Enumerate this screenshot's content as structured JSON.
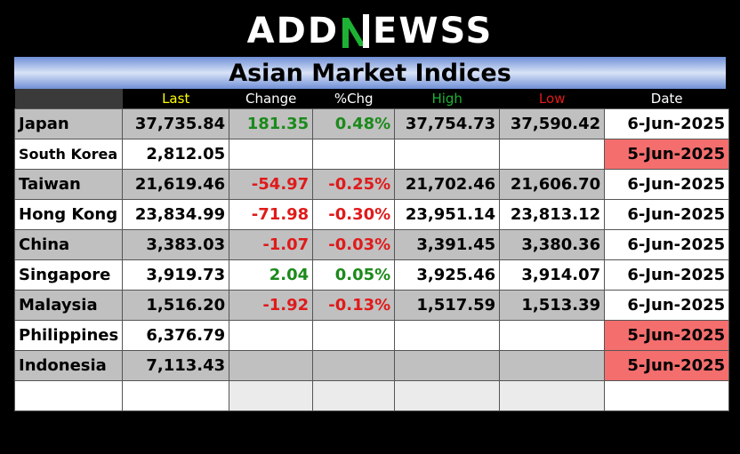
{
  "brand": {
    "pre": "ADD",
    "post": "EWSS",
    "colors": {
      "white": "#ffffff",
      "green": "#1db233"
    }
  },
  "title": "Asian Market Indices",
  "columns": [
    {
      "key": "last",
      "label": "Last",
      "color": "#ffff00"
    },
    {
      "key": "change",
      "label": "Change",
      "color": "#ffffff"
    },
    {
      "key": "pct",
      "label": "%Chg",
      "color": "#ffffff"
    },
    {
      "key": "high",
      "label": "High",
      "color": "#1db233"
    },
    {
      "key": "low",
      "label": "Low",
      "color": "#e01a1a"
    },
    {
      "key": "date",
      "label": "Date",
      "color": "#ffffff"
    }
  ],
  "rows": [
    {
      "name": "Japan",
      "last": "37,735.84",
      "change": "181.35",
      "pct": "0.48%",
      "high": "37,754.73",
      "low": "37,590.42",
      "date": "6-Jun-2025",
      "dir": "pos",
      "stale": false
    },
    {
      "name": "South Korea",
      "last": "2,812.05",
      "change": "",
      "pct": "",
      "high": "",
      "low": "",
      "date": "5-Jun-2025",
      "dir": "",
      "stale": true
    },
    {
      "name": "Taiwan",
      "last": "21,619.46",
      "change": "-54.97",
      "pct": "-0.25%",
      "high": "21,702.46",
      "low": "21,606.70",
      "date": "6-Jun-2025",
      "dir": "neg",
      "stale": false
    },
    {
      "name": "Hong Kong",
      "last": "23,834.99",
      "change": "-71.98",
      "pct": "-0.30%",
      "high": "23,951.14",
      "low": "23,813.12",
      "date": "6-Jun-2025",
      "dir": "neg",
      "stale": false
    },
    {
      "name": "China",
      "last": "3,383.03",
      "change": "-1.07",
      "pct": "-0.03%",
      "high": "3,391.45",
      "low": "3,380.36",
      "date": "6-Jun-2025",
      "dir": "neg",
      "stale": false
    },
    {
      "name": "Singapore",
      "last": "3,919.73",
      "change": "2.04",
      "pct": "0.05%",
      "high": "3,925.46",
      "low": "3,914.07",
      "date": "6-Jun-2025",
      "dir": "pos",
      "stale": false
    },
    {
      "name": "Malaysia",
      "last": "1,516.20",
      "change": "-1.92",
      "pct": "-0.13%",
      "high": "1,517.59",
      "low": "1,513.39",
      "date": "6-Jun-2025",
      "dir": "neg",
      "stale": false
    },
    {
      "name": "Philippines",
      "last": "6,376.79",
      "change": "",
      "pct": "",
      "high": "",
      "low": "",
      "date": "5-Jun-2025",
      "dir": "",
      "stale": true
    },
    {
      "name": "Indonesia",
      "last": "7,113.43",
      "change": "",
      "pct": "",
      "high": "",
      "low": "",
      "date": "5-Jun-2025",
      "dir": "",
      "stale": true
    }
  ]
}
